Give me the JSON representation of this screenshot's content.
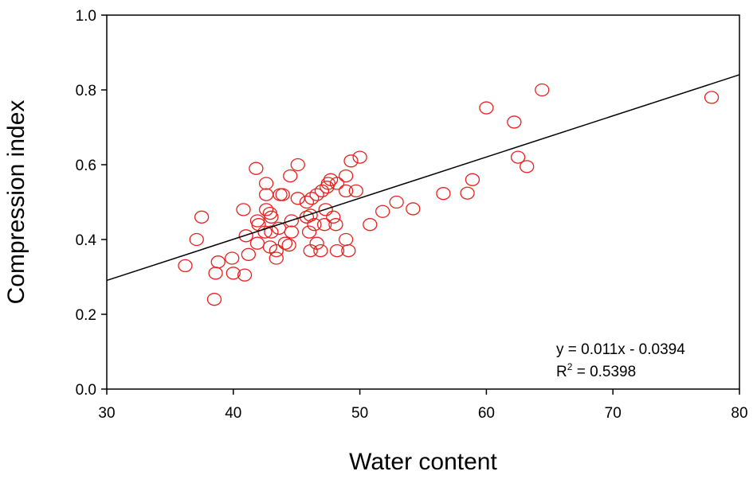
{
  "chart_data": {
    "type": "scatter",
    "title": "",
    "xlabel": "Water content",
    "ylabel": "Compression index",
    "xlim": [
      30,
      80
    ],
    "ylim": [
      0.0,
      1.0
    ],
    "x_ticks": [
      "30",
      "40",
      "50",
      "60",
      "70",
      "80"
    ],
    "y_ticks": [
      "0.0",
      "0.2",
      "0.4",
      "0.6",
      "0.8",
      "1.0"
    ],
    "grid": false,
    "marker": "open-circle",
    "marker_color": "#e8201e",
    "trendline": {
      "slope": 0.011,
      "intercept": -0.0394,
      "x_range": [
        30,
        80
      ],
      "color": "#000000"
    },
    "equation_label": "y = 0.011x - 0.0394",
    "r2_prefix": "R",
    "r2_superscript": "2",
    "r2_value": " = 0.5398",
    "points": [
      [
        36.2,
        0.33
      ],
      [
        37.1,
        0.4
      ],
      [
        37.5,
        0.46
      ],
      [
        38.5,
        0.24
      ],
      [
        38.6,
        0.31
      ],
      [
        38.8,
        0.34
      ],
      [
        39.9,
        0.35
      ],
      [
        40.0,
        0.31
      ],
      [
        40.8,
        0.48
      ],
      [
        40.9,
        0.305
      ],
      [
        41.0,
        0.41
      ],
      [
        41.2,
        0.36
      ],
      [
        41.8,
        0.59
      ],
      [
        41.9,
        0.45
      ],
      [
        41.9,
        0.39
      ],
      [
        42.0,
        0.44
      ],
      [
        42.5,
        0.42
      ],
      [
        42.6,
        0.55
      ],
      [
        42.6,
        0.52
      ],
      [
        42.6,
        0.48
      ],
      [
        42.9,
        0.47
      ],
      [
        42.9,
        0.38
      ],
      [
        43.0,
        0.46
      ],
      [
        43.0,
        0.42
      ],
      [
        43.4,
        0.35
      ],
      [
        43.4,
        0.37
      ],
      [
        43.6,
        0.43
      ],
      [
        43.7,
        0.52
      ],
      [
        43.9,
        0.52
      ],
      [
        44.1,
        0.39
      ],
      [
        44.4,
        0.385
      ],
      [
        44.5,
        0.57
      ],
      [
        44.6,
        0.45
      ],
      [
        44.6,
        0.42
      ],
      [
        45.1,
        0.6
      ],
      [
        45.1,
        0.51
      ],
      [
        45.8,
        0.46
      ],
      [
        45.8,
        0.5
      ],
      [
        46.0,
        0.42
      ],
      [
        46.1,
        0.465
      ],
      [
        46.1,
        0.37
      ],
      [
        46.2,
        0.51
      ],
      [
        46.4,
        0.44
      ],
      [
        46.6,
        0.52
      ],
      [
        46.6,
        0.39
      ],
      [
        46.9,
        0.37
      ],
      [
        47.0,
        0.53
      ],
      [
        47.2,
        0.44
      ],
      [
        47.3,
        0.48
      ],
      [
        47.4,
        0.54
      ],
      [
        47.5,
        0.55
      ],
      [
        47.7,
        0.56
      ],
      [
        47.9,
        0.46
      ],
      [
        48.1,
        0.44
      ],
      [
        48.2,
        0.55
      ],
      [
        48.2,
        0.37
      ],
      [
        48.9,
        0.57
      ],
      [
        48.9,
        0.53
      ],
      [
        48.9,
        0.4
      ],
      [
        49.1,
        0.37
      ],
      [
        49.3,
        0.61
      ],
      [
        49.7,
        0.53
      ],
      [
        50.0,
        0.62
      ],
      [
        50.8,
        0.44
      ],
      [
        51.8,
        0.475
      ],
      [
        52.9,
        0.5
      ],
      [
        54.2,
        0.482
      ],
      [
        56.6,
        0.523
      ],
      [
        58.5,
        0.524
      ],
      [
        58.9,
        0.56
      ],
      [
        60.0,
        0.752
      ],
      [
        62.2,
        0.714
      ],
      [
        62.5,
        0.62
      ],
      [
        63.2,
        0.595
      ],
      [
        64.4,
        0.8
      ],
      [
        77.8,
        0.78
      ]
    ]
  }
}
